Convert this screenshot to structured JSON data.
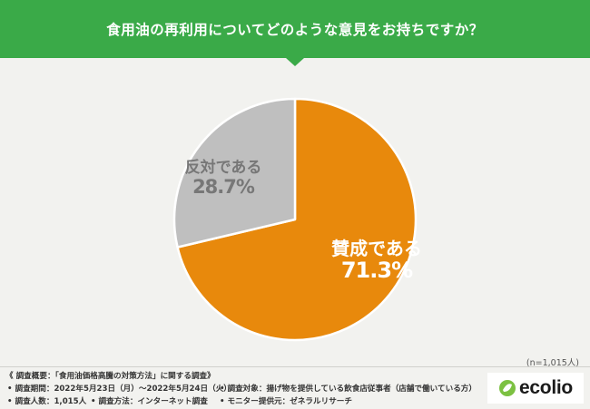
{
  "header": {
    "title": "食用油の再利用についてどのような意見をお持ちですか？",
    "color": "#3aaa48"
  },
  "chart_data": {
    "type": "pie",
    "title": "",
    "slices": [
      {
        "label": "賛成である",
        "value": 71.3,
        "value_label": "71.3%",
        "color": "#e8890c"
      },
      {
        "label": "反対である",
        "value": 28.7,
        "value_label": "28.7%",
        "color": "#bfbfbf"
      }
    ],
    "start_angle": "12 o'clock, clockwise",
    "sample_size": "(n=1,015人)"
  },
  "footer": {
    "overview": "《 調査概要：「食用油価格高騰の対策方法」に関する調査》",
    "period": "• 調査期間：2022年5月23日（月）～2022年5月24日（火）",
    "count": "• 調査人数：1,015人",
    "method": "• 調査方法：インターネット調査",
    "target": "• 調査対象：揚げ物を提供している飲食店従事者（店舗で働いている方）",
    "provider": "• モニター提供元：ゼネラルリサーチ"
  },
  "logo": {
    "text": "ecolio",
    "icon": "leaf-logo-icon",
    "color": "#7cc142"
  }
}
